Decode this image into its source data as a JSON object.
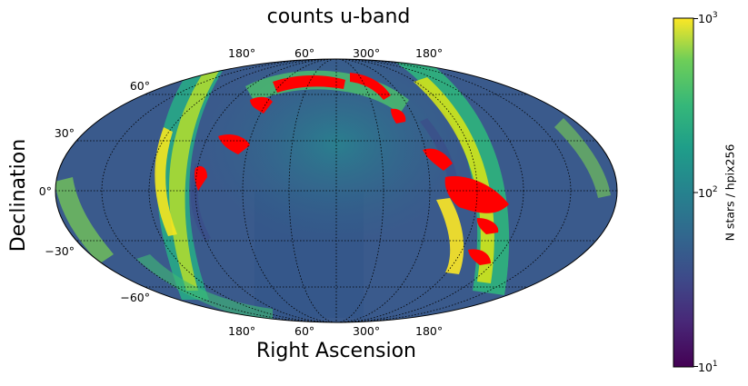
{
  "chart_data": {
    "type": "heatmap",
    "projection": "mollweide",
    "title": "counts u-band",
    "xlabel": "Right Ascension",
    "ylabel": "Declination",
    "ra_tick_labels_top": [
      "180°",
      "60°",
      "300°",
      "180°"
    ],
    "ra_tick_labels_bottom": [
      "180°",
      "60°",
      "300°",
      "180°"
    ],
    "dec_tick_labels": [
      "60°",
      "30°",
      "0°",
      "−30°",
      "−60°"
    ],
    "colorbar": {
      "label": "N stars / hpix256",
      "scale": "log",
      "range": [
        10,
        1000
      ],
      "ticks": [
        {
          "base": "10",
          "exp": "3"
        },
        {
          "base": "10",
          "exp": "2"
        },
        {
          "base": "10",
          "exp": "1"
        }
      ],
      "colormap": "viridis",
      "saturated_color": "#ff0000"
    },
    "grid": true
  },
  "colors": {
    "background": "#3b528b",
    "mid": "#21918c",
    "high": "#5ec962",
    "peak": "#fde725",
    "saturated": "#ff0000"
  }
}
